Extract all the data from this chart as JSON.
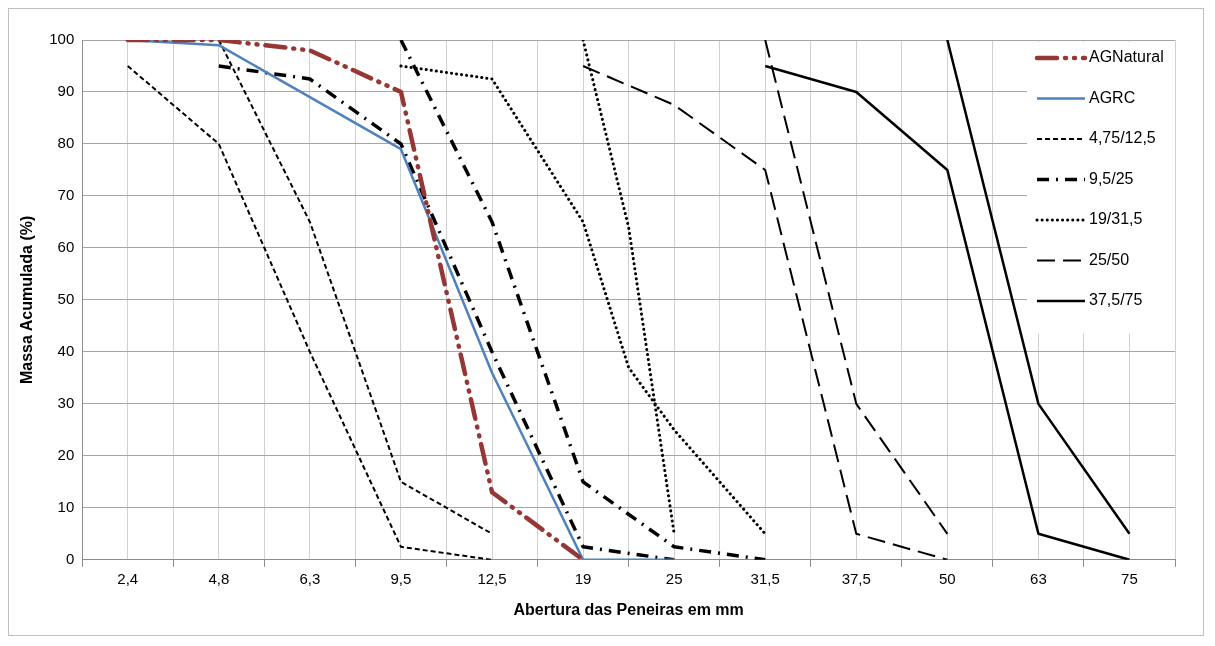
{
  "chart_data": {
    "type": "line",
    "xlabel": "Abertura das Peneiras em mm",
    "ylabel": "Massa Acumulada (%)",
    "categories": [
      null,
      "2,4",
      null,
      "4,8",
      null,
      "6,3",
      null,
      "9,5",
      null,
      "12,5",
      null,
      "19",
      null,
      "25",
      null,
      "31,5",
      null,
      "37,5",
      null,
      "50",
      null,
      "63",
      null,
      "75",
      null
    ],
    "ylim": [
      0,
      100
    ],
    "yticks": [
      0,
      10,
      20,
      30,
      40,
      50,
      60,
      70,
      80,
      90,
      100
    ],
    "grid": true,
    "legend": "top right",
    "marker": "none",
    "series": [
      {
        "name": "AGNatural",
        "color": "#953735",
        "line_style": "dashdotdot",
        "values": [
          null,
          100,
          null,
          100,
          null,
          98,
          null,
          90,
          null,
          13,
          null,
          0,
          null,
          null,
          null,
          null,
          null,
          null,
          null,
          null,
          null,
          null,
          null,
          null,
          null
        ]
      },
      {
        "name": "AGRC",
        "color": "#4f81bd",
        "line_style": "solid",
        "values": [
          null,
          100,
          null,
          99,
          null,
          89,
          null,
          79,
          null,
          36,
          null,
          0,
          null,
          0,
          null,
          null,
          null,
          null,
          null,
          null,
          null,
          null,
          null,
          null,
          null
        ]
      },
      {
        "name": "4,75/12,5",
        "color": "#000000",
        "line_style": "dashed",
        "values": [
          null,
          95,
          null,
          80,
          null,
          40,
          null,
          2.5,
          null,
          0,
          null,
          null,
          null,
          null,
          null,
          null,
          null,
          null,
          null,
          null,
          null,
          null,
          null,
          null,
          null
        ]
      },
      {
        "color": "#000000",
        "line_style": "dashed",
        "values": [
          null,
          null,
          null,
          100,
          null,
          65,
          null,
          15,
          null,
          5,
          null,
          null,
          null,
          null,
          null,
          null,
          null,
          null,
          null,
          null,
          null,
          null,
          null,
          null,
          null
        ]
      },
      {
        "name": "9,5/25",
        "color": "#000000",
        "line_style": "dashdot",
        "values": [
          null,
          null,
          null,
          95,
          null,
          92.5,
          null,
          80,
          null,
          40,
          null,
          2.5,
          null,
          0,
          null,
          null,
          null,
          null,
          null,
          null,
          null,
          null,
          null,
          null,
          null
        ]
      },
      {
        "color": "#000000",
        "line_style": "dashdot",
        "values": [
          null,
          null,
          null,
          null,
          null,
          null,
          null,
          100,
          null,
          65,
          null,
          15,
          null,
          2.5,
          null,
          0,
          null,
          null,
          null,
          null,
          null,
          null,
          null,
          null,
          null
        ]
      },
      {
        "name": "19/31,5",
        "color": "#000000",
        "line_style": "dotted",
        "values": [
          null,
          null,
          null,
          null,
          null,
          null,
          null,
          95,
          null,
          92.5,
          null,
          65,
          37,
          25,
          null,
          5,
          null,
          null,
          null,
          null,
          null,
          null,
          null,
          null,
          null
        ]
      },
      {
        "color": "#000000",
        "line_style": "dotted",
        "values": [
          null,
          null,
          null,
          null,
          null,
          null,
          null,
          null,
          null,
          null,
          null,
          100,
          64,
          5,
          null,
          null,
          null,
          null,
          null,
          null,
          null,
          null,
          null,
          null,
          null
        ]
      },
      {
        "name": "25/50",
        "color": "#000000",
        "line_style": "longdash",
        "values": [
          null,
          null,
          null,
          null,
          null,
          null,
          null,
          null,
          null,
          null,
          null,
          95,
          null,
          87.5,
          null,
          75,
          null,
          5,
          null,
          0,
          null,
          null,
          null,
          null,
          null
        ]
      },
      {
        "color": "#000000",
        "line_style": "longdash",
        "values": [
          null,
          null,
          null,
          null,
          null,
          null,
          null,
          null,
          null,
          null,
          null,
          null,
          null,
          null,
          null,
          100,
          null,
          30,
          null,
          5,
          null,
          null,
          null,
          null,
          null
        ]
      },
      {
        "name": "37,5/75",
        "color": "#000000",
        "line_style": "solid",
        "values": [
          null,
          null,
          null,
          null,
          null,
          null,
          null,
          null,
          null,
          null,
          null,
          null,
          null,
          null,
          null,
          95,
          null,
          90,
          null,
          75,
          null,
          5,
          null,
          0,
          null
        ]
      },
      {
        "color": "#000000",
        "line_style": "solid",
        "values": [
          null,
          null,
          null,
          null,
          null,
          null,
          null,
          null,
          null,
          null,
          null,
          null,
          null,
          null,
          null,
          null,
          null,
          null,
          null,
          100,
          null,
          30,
          null,
          5,
          null
        ]
      }
    ]
  }
}
